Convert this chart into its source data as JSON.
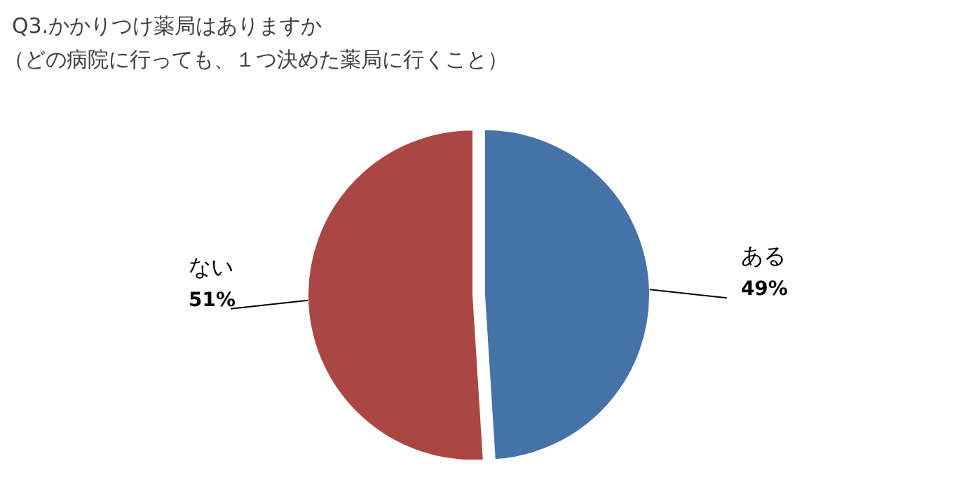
{
  "chart_data": {
    "type": "pie",
    "title": "Q3.かかりつけ薬局はありますか",
    "subtitle": "（どの病院に行っても、１つ決めた薬局に行くこと）",
    "categories": [
      "ある",
      "ない"
    ],
    "values": [
      49,
      51
    ],
    "colors": [
      "#4572a7",
      "#aa4643"
    ],
    "value_labels": [
      "49%",
      "51%"
    ]
  }
}
